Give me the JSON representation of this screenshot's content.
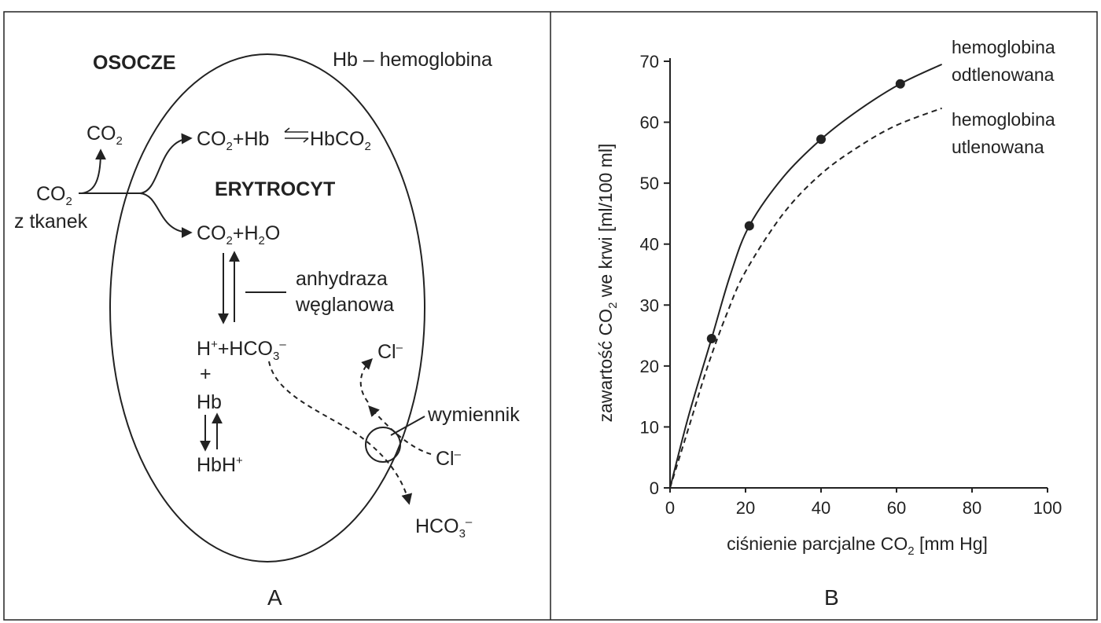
{
  "panel_a": {
    "label": "A",
    "plasma_label": "OSOCZE",
    "legend": "Hb – hemoglobina",
    "cell_label": "ERYTROCYT",
    "co2_top": {
      "main": "CO",
      "sub": "2"
    },
    "co2_tissue": {
      "main": "CO",
      "sub": "2",
      "line2": "z tkanek"
    },
    "eq1": {
      "p1": "CO",
      "s1": "2",
      "p2": "+Hb",
      "p3": "HbCO",
      "s3": "2"
    },
    "eq2": {
      "p1": "CO",
      "s1": "2",
      "p2": "+H",
      "s2": "2",
      "p3": "O"
    },
    "enzyme": {
      "line1": "anhydraza",
      "line2": "węglanowa"
    },
    "ions": {
      "p1": "H",
      "sup1": "+",
      "p2": "+HCO",
      "sub2": "3",
      "sup2": "–"
    },
    "plus": "+",
    "hb": "Hb",
    "hbh": {
      "main": "HbH",
      "sup": "+"
    },
    "cl_top": {
      "main": "Cl",
      "sup": "–"
    },
    "cl_bottom": {
      "main": "Cl",
      "sup": "–"
    },
    "exchanger": "wymiennik",
    "hco3_out": {
      "main": "HCO",
      "sub": "3",
      "sup": "–"
    }
  },
  "panel_b": {
    "label": "B",
    "ylabel": {
      "p1": "zawartość CO",
      "sub": "2",
      "p2": " we krwi [ml/100 ml]"
    },
    "xlabel": {
      "p1": "ciśnienie parcjalne CO",
      "sub": "2",
      "p2": " [mm Hg]"
    },
    "legend_solid": {
      "line1": "hemoglobina",
      "line2": "odtlenowana"
    },
    "legend_dashed": {
      "line1": "hemoglobina",
      "line2": "utlenowana"
    }
  },
  "chart_data": {
    "type": "line",
    "xlim": [
      0,
      100
    ],
    "ylim": [
      0,
      70
    ],
    "xticks": [
      0,
      20,
      40,
      60,
      80,
      100
    ],
    "yticks": [
      0,
      10,
      20,
      30,
      40,
      50,
      60,
      70
    ],
    "series": [
      {
        "name": "hemoglobina odtlenowana",
        "style": "solid",
        "color": "#222222",
        "x": [
          0,
          5,
          11,
          16,
          21,
          30,
          40,
          50,
          61,
          72
        ],
        "y": [
          0,
          12,
          24.5,
          35,
          43,
          51,
          57.2,
          62,
          66.3,
          69.5
        ],
        "markers": [
          {
            "x": 11,
            "y": 24.5
          },
          {
            "x": 21,
            "y": 43
          },
          {
            "x": 40,
            "y": 57.2
          },
          {
            "x": 61,
            "y": 66.3
          }
        ]
      },
      {
        "name": "hemoglobina utlenowana",
        "style": "dashed",
        "color": "#222222",
        "x": [
          0,
          5,
          10,
          15,
          20,
          30,
          40,
          50,
          60,
          72
        ],
        "y": [
          0,
          10,
          20,
          28.5,
          35.5,
          45,
          51.5,
          56,
          59.5,
          62.3
        ]
      }
    ]
  }
}
